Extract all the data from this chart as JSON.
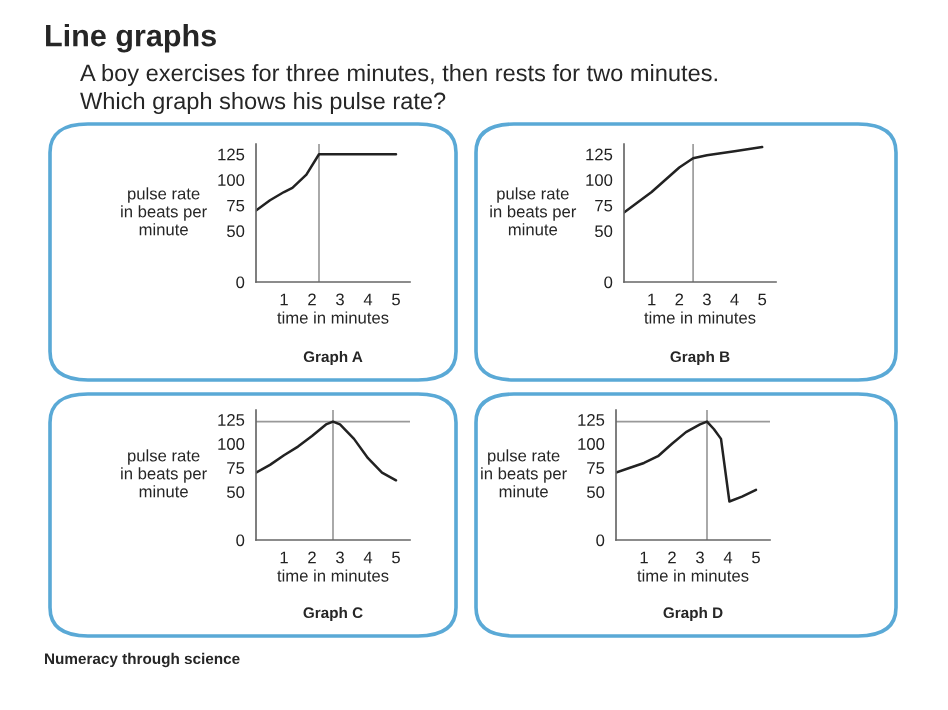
{
  "chart_data": [
    {
      "type": "other",
      "title": "Line graphs",
      "subtitle": "A boy exercises for three minutes, then rests for two minutes.\nWhich graph shows his pulse rate?",
      "annotations": [
        "Numeracy through science"
      ]
    },
    {
      "type": "line",
      "title": "Graph A",
      "xlabel": "time in minutes",
      "ylabel": "pulse rate\nin beats per\nminute",
      "xlim": [
        0,
        5.5
      ],
      "xticks": [
        1,
        2,
        3,
        4,
        5
      ],
      "ylim": [
        0,
        135
      ],
      "yticks": [
        0,
        50,
        75,
        100,
        125
      ],
      "grid": false,
      "legend": false,
      "ref_lines": [
        {
          "axis": "x",
          "value": 2.25,
          "color": "#999999"
        }
      ],
      "series": [
        {
          "color": "#222222",
          "x": [
            0,
            0.5,
            1,
            1.3,
            1.8,
            2.25,
            5
          ],
          "values": [
            70,
            80,
            88,
            92,
            105,
            125,
            125
          ]
        }
      ]
    },
    {
      "type": "line",
      "title": "Graph B",
      "xlabel": "time in minutes",
      "ylabel": "pulse rate\nin beats per\nminute",
      "xlim": [
        0,
        5.5
      ],
      "xticks": [
        1,
        2,
        3,
        4,
        5
      ],
      "ylim": [
        0,
        135
      ],
      "yticks": [
        0,
        50,
        75,
        100,
        125
      ],
      "grid": false,
      "legend": false,
      "ref_lines": [
        {
          "axis": "x",
          "value": 2.5,
          "color": "#999999"
        }
      ],
      "series": [
        {
          "color": "#222222",
          "x": [
            0,
            0.5,
            1,
            1.5,
            2,
            2.5,
            3,
            4,
            5
          ],
          "values": [
            68,
            78,
            88,
            100,
            112,
            121,
            124,
            128,
            132
          ]
        }
      ]
    },
    {
      "type": "line",
      "title": "Graph C",
      "xlabel": "time in minutes",
      "ylabel": "pulse rate\nin beats per\nminute",
      "xlim": [
        0,
        5.5
      ],
      "xticks": [
        1,
        2,
        3,
        4,
        5
      ],
      "ylim": [
        0,
        135
      ],
      "yticks": [
        0,
        50,
        75,
        100,
        125
      ],
      "grid": false,
      "legend": false,
      "ref_lines": [
        {
          "axis": "x",
          "value": 2.75,
          "color": "#999999"
        },
        {
          "axis": "y",
          "value": 123,
          "color": "#999999"
        }
      ],
      "series": [
        {
          "color": "#222222",
          "x": [
            0,
            0.5,
            1,
            1.5,
            2,
            2.5,
            2.75,
            3,
            3.5,
            4,
            4.5,
            5
          ],
          "values": [
            70,
            78,
            88,
            97,
            108,
            120,
            123,
            120,
            105,
            85,
            70,
            62
          ]
        }
      ]
    },
    {
      "type": "line",
      "title": "Graph D",
      "xlabel": "time in minutes",
      "ylabel": "pulse rate\nin beats per\nminute",
      "xlim": [
        0,
        5.5
      ],
      "xticks": [
        1,
        2,
        3,
        4,
        5
      ],
      "ylim": [
        0,
        135
      ],
      "yticks": [
        0,
        50,
        75,
        100,
        125
      ],
      "grid": false,
      "legend": false,
      "ref_lines": [
        {
          "axis": "x",
          "value": 3.25,
          "color": "#999999"
        },
        {
          "axis": "y",
          "value": 123,
          "color": "#999999"
        }
      ],
      "series": [
        {
          "color": "#222222",
          "x": [
            0,
            0.5,
            1,
            1.5,
            2,
            2.5,
            3,
            3.25,
            3.5,
            3.75,
            4.05,
            4.5,
            5
          ],
          "values": [
            70,
            75,
            80,
            87,
            100,
            112,
            120,
            123,
            115,
            105,
            40,
            45,
            52
          ]
        }
      ]
    }
  ]
}
